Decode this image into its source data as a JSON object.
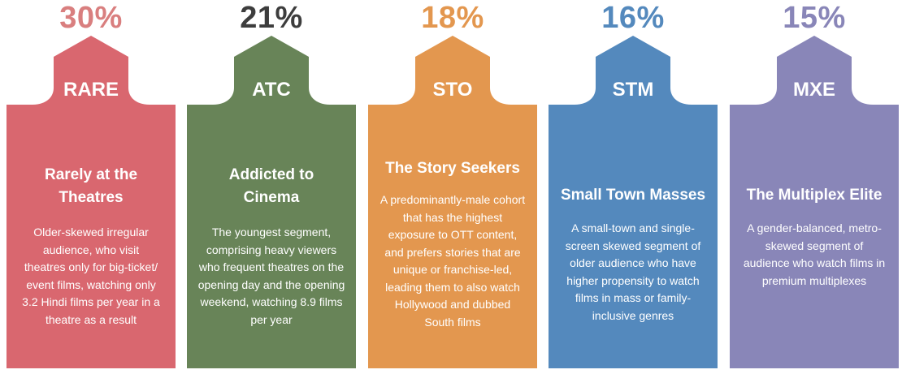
{
  "segments": [
    {
      "percent": "30%",
      "code": "RARE",
      "title": "Rarely at the Theatres",
      "description": "Older-skewed irregular audience, who visit theatres only for big-ticket/ event films, watching only 3.2 Hindi films per year in a theatre as a result",
      "color": "#d9676f",
      "percent_color": "#d97f7f"
    },
    {
      "percent": "21%",
      "code": "ATC",
      "title": "Addicted to Cinema",
      "description": "The youngest segment, comprising heavy viewers who frequent theatres on the opening day and the opening weekend, watching 8.9 films per year",
      "color": "#688458",
      "percent_color": "#3d3d3d"
    },
    {
      "percent": "18%",
      "code": "STO",
      "title": "The Story Seekers",
      "description": "A predominantly-male cohort that has the highest exposure to OTT content, and prefers stories that are unique or franchise-led, leading them to also watch Hollywood and dubbed South films",
      "color": "#e3974f",
      "percent_color": "#e3974f"
    },
    {
      "percent": "16%",
      "code": "STM",
      "title": "Small Town Masses",
      "description": "A small-town and single-screen skewed segment of older audience who have higher propensity to watch films in mass or family-inclusive genres",
      "color": "#5489bd",
      "percent_color": "#5489bd"
    },
    {
      "percent": "15%",
      "code": "MXE",
      "title": "The Multiplex Elite",
      "description": "A gender-balanced, metro-skewed segment of audience who watch films in premium multiplexes",
      "color": "#8986b8",
      "percent_color": "#8986b8"
    }
  ]
}
